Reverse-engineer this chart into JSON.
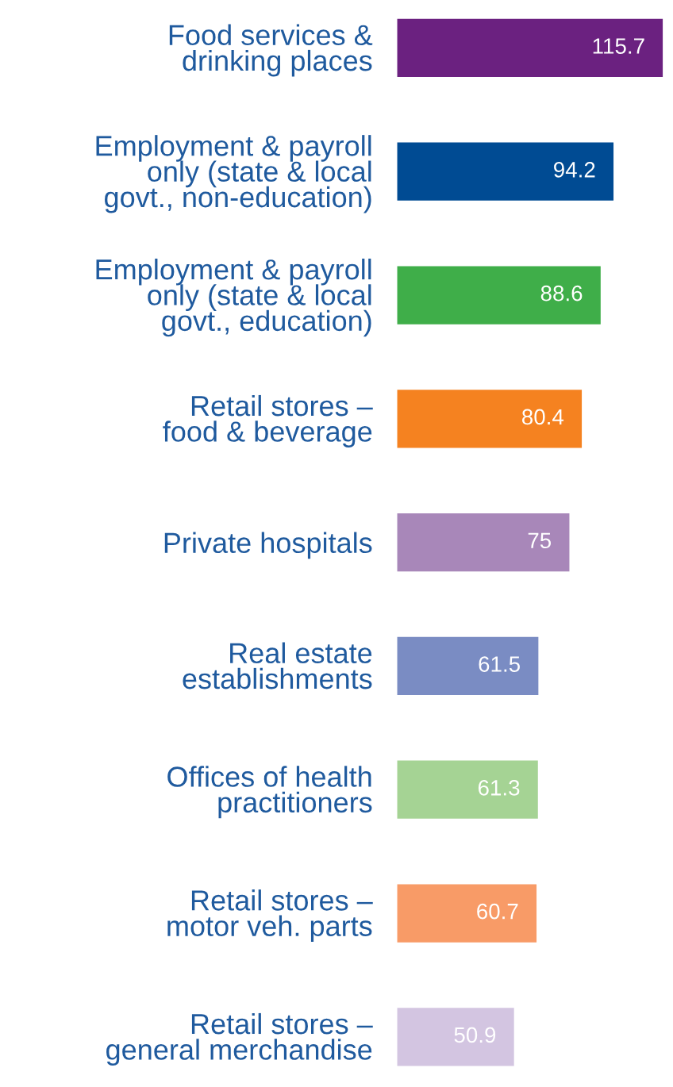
{
  "chart_data": {
    "type": "bar",
    "orientation": "horizontal",
    "data_labels": true,
    "tick_labels": "y",
    "grid": false,
    "legend": false,
    "categories": [
      "Food services &\ndrinking places",
      "Employment & payroll\nonly (state & local\ngovt., non-education)",
      "Employment & payroll\nonly (state & local\ngovt., education)",
      "Retail stores –\nfood & beverage",
      "Private hospitals",
      "Real estate\nestablishments",
      "Offices of health\npractitioners",
      "Retail stores –\nmotor veh. parts",
      "Retail stores –\ngeneral merchandise"
    ],
    "values": [
      115.7,
      94.2,
      88.6,
      80.4,
      75,
      61.5,
      61.3,
      60.7,
      50.9
    ],
    "colors": [
      "#6b2180",
      "#004b93",
      "#3fae49",
      "#f58220",
      "#a887b9",
      "#7a8cc3",
      "#a5d394",
      "#f89b67",
      "#d3c5e1"
    ]
  }
}
